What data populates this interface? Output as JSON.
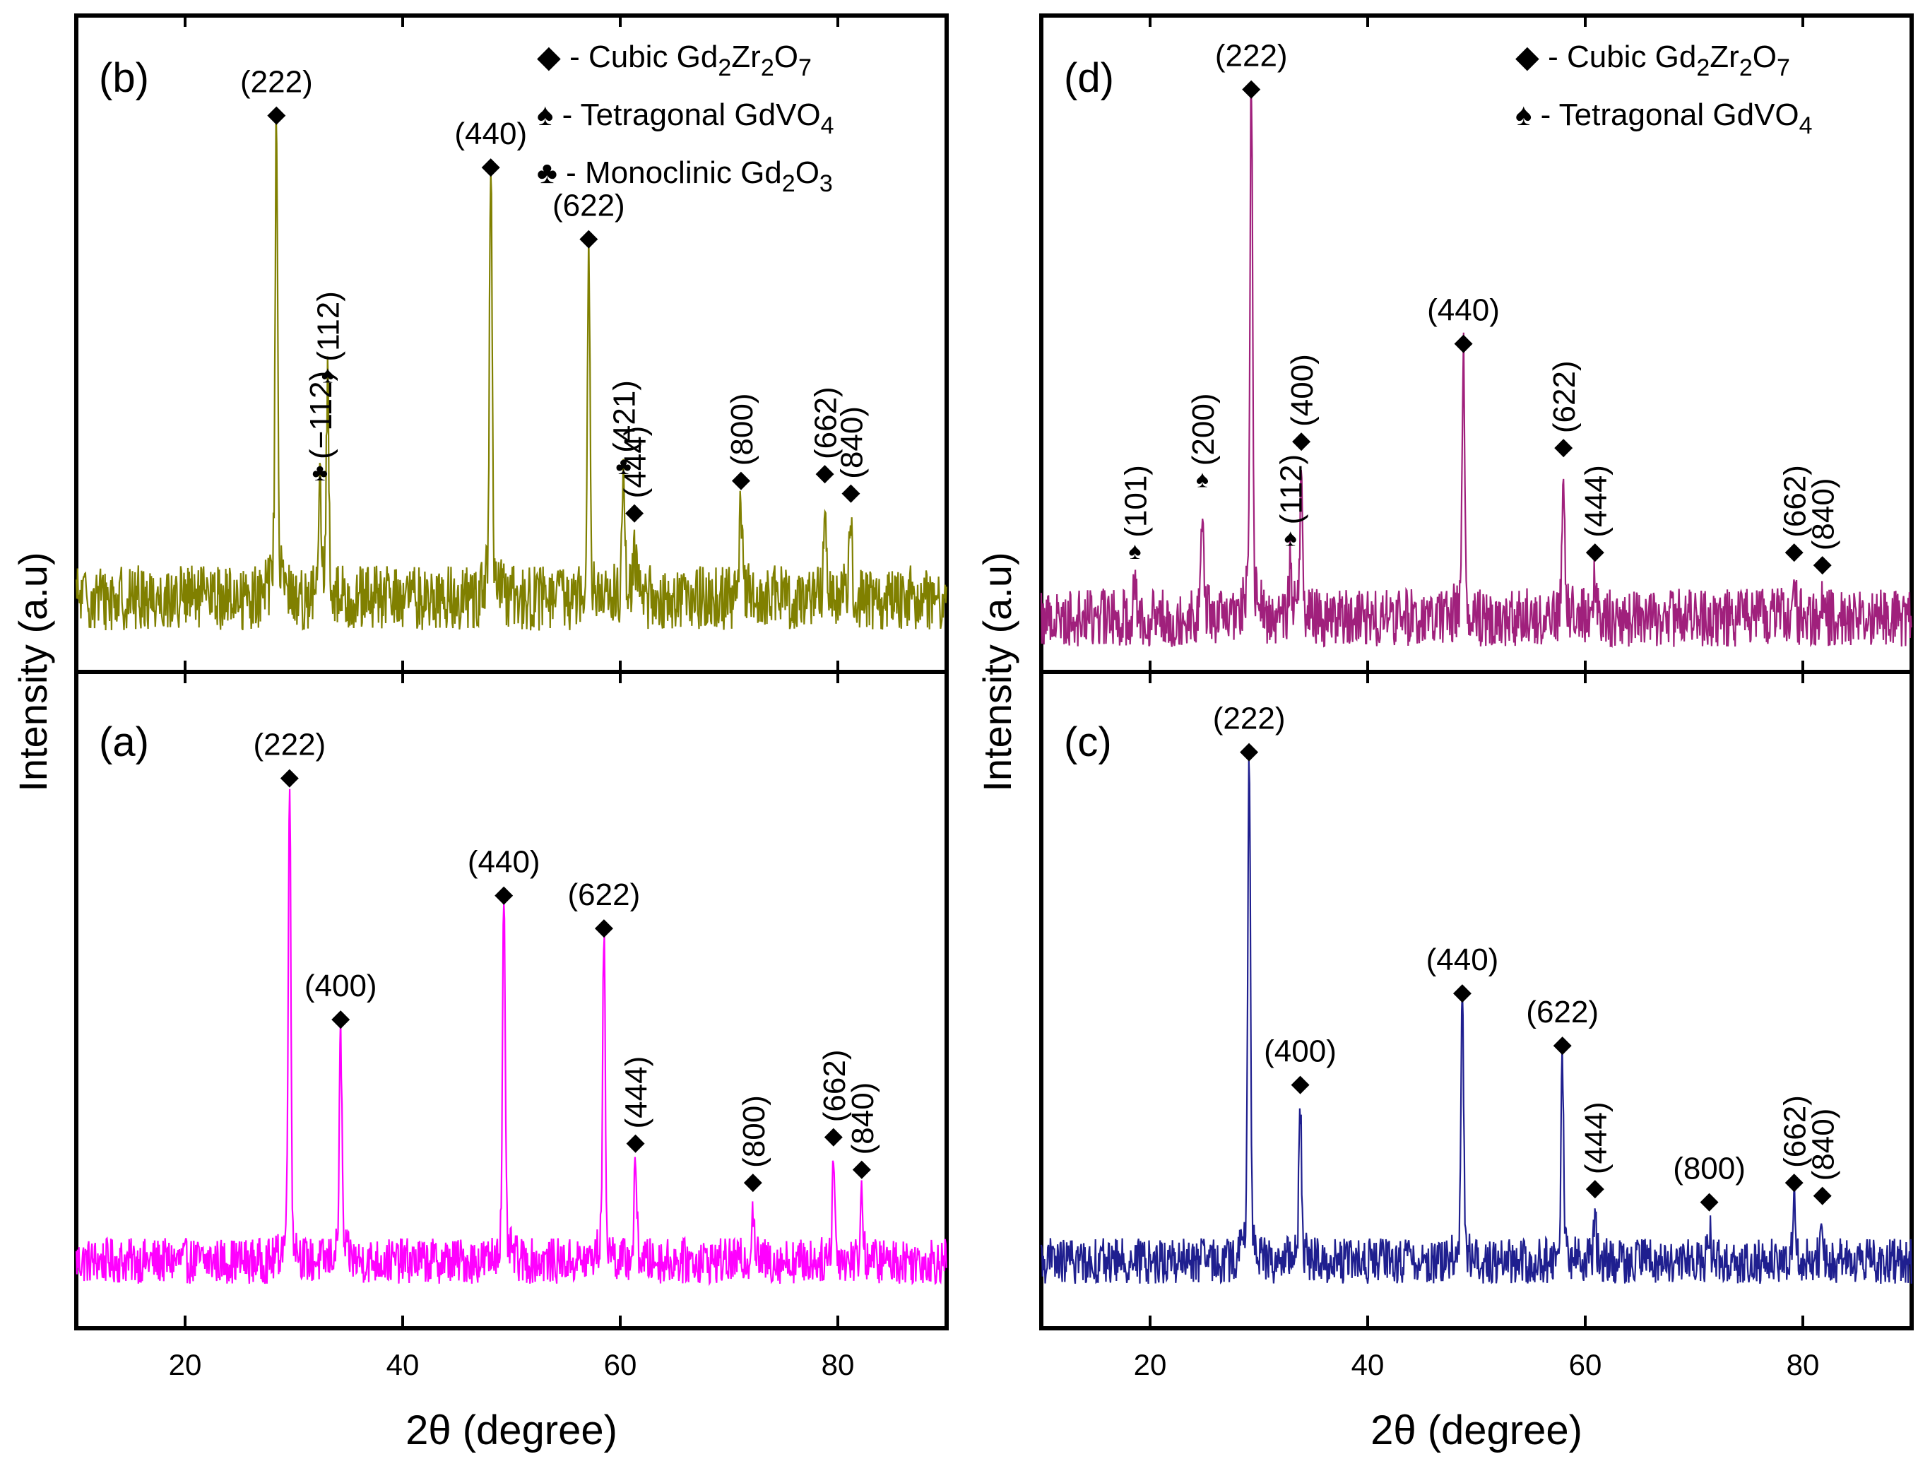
{
  "figure": {
    "y_axis_label": "Intensity (a.u)",
    "x_axis_label": "2θ (degree)",
    "x_ticks": [
      "20",
      "40",
      "60",
      "80"
    ]
  },
  "symbols": {
    "diamond": "◆",
    "spade": "♠",
    "club": "♣"
  },
  "chart_data": [
    {
      "type": "line",
      "panel": "(a)",
      "color": "#ff00ff",
      "xlabel": "2θ (degree)",
      "ylabel": "Intensity (a.u)",
      "xlim": [
        10,
        90
      ],
      "legend": [],
      "baseline": 0.1,
      "noise": 0.035,
      "peaks": [
        {
          "x": 29.6,
          "h": 0.7,
          "label": "(222)",
          "marker": "diamond",
          "rotated": false
        },
        {
          "x": 34.3,
          "h": 0.33,
          "label": "(400)",
          "marker": "diamond",
          "rotated": false
        },
        {
          "x": 49.3,
          "h": 0.52,
          "label": "(440)",
          "marker": "diamond",
          "rotated": false
        },
        {
          "x": 58.5,
          "h": 0.47,
          "label": "(622)",
          "marker": "diamond",
          "rotated": false
        },
        {
          "x": 61.4,
          "h": 0.14,
          "label": "(444)",
          "marker": "diamond",
          "rotated": true
        },
        {
          "x": 72.2,
          "h": 0.08,
          "label": "(800)",
          "marker": "diamond",
          "rotated": true
        },
        {
          "x": 79.6,
          "h": 0.15,
          "label": "(662)",
          "marker": "diamond",
          "rotated": true
        },
        {
          "x": 82.2,
          "h": 0.1,
          "label": "(840)",
          "marker": "diamond",
          "rotated": true
        }
      ]
    },
    {
      "type": "line",
      "panel": "(b)",
      "color": "#808000",
      "xlabel": "2θ (degree)",
      "ylabel": "Intensity (a.u)",
      "xlim": [
        10,
        90
      ],
      "legend": [
        {
          "symbol": "diamond",
          "text": " - Cubic Gd",
          "sub1": "2",
          "text2": "Zr",
          "sub2": "2",
          "text3": "O",
          "sub3": "7"
        },
        {
          "symbol": "spade",
          "text": " - Tetragonal GdVO",
          "sub1": "4"
        },
        {
          "symbol": "club",
          "text": " - Monoclinic Gd",
          "sub1": "2",
          "text2": "O",
          "sub2": "3"
        }
      ],
      "baseline": 0.11,
      "noise": 0.05,
      "peaks": [
        {
          "x": 28.4,
          "h": 0.7,
          "label": "(222)",
          "marker": "diamond",
          "rotated": false
        },
        {
          "x": 32.4,
          "h": 0.15,
          "label": "(−112)",
          "marker": "club",
          "rotated": true
        },
        {
          "x": 33.1,
          "h": 0.3,
          "label": "(112)",
          "marker": "spade",
          "rotated": true
        },
        {
          "x": 48.1,
          "h": 0.62,
          "label": "(440)",
          "marker": "diamond",
          "rotated": false
        },
        {
          "x": 57.1,
          "h": 0.51,
          "label": "(622)",
          "marker": "diamond",
          "rotated": false
        },
        {
          "x": 60.3,
          "h": 0.16,
          "label": "(421)",
          "marker": "club",
          "rotated": true
        },
        {
          "x": 61.3,
          "h": 0.09,
          "label": "(444)",
          "marker": "diamond",
          "rotated": true
        },
        {
          "x": 71.1,
          "h": 0.14,
          "label": "(800)",
          "marker": "diamond",
          "rotated": true
        },
        {
          "x": 78.8,
          "h": 0.15,
          "label": "(662)",
          "marker": "diamond",
          "rotated": true
        },
        {
          "x": 81.2,
          "h": 0.12,
          "label": "(840)",
          "marker": "diamond",
          "rotated": true
        }
      ]
    },
    {
      "type": "line",
      "panel": "(c)",
      "color": "#1f1f8f",
      "xlabel": "2θ (degree)",
      "ylabel": "Intensity (a.u)",
      "xlim": [
        10,
        90
      ],
      "legend": [],
      "baseline": 0.1,
      "noise": 0.035,
      "peaks": [
        {
          "x": 29.1,
          "h": 0.74,
          "label": "(222)",
          "marker": "diamond",
          "rotated": false
        },
        {
          "x": 33.8,
          "h": 0.23,
          "label": "(400)",
          "marker": "diamond",
          "rotated": false
        },
        {
          "x": 48.7,
          "h": 0.37,
          "label": "(440)",
          "marker": "diamond",
          "rotated": false
        },
        {
          "x": 57.9,
          "h": 0.29,
          "label": "(622)",
          "marker": "diamond",
          "rotated": false
        },
        {
          "x": 60.9,
          "h": 0.07,
          "label": "(444)",
          "marker": "diamond",
          "rotated": true
        },
        {
          "x": 71.4,
          "h": 0.05,
          "label": "(800)",
          "marker": "diamond",
          "rotated": false
        },
        {
          "x": 79.2,
          "h": 0.08,
          "label": "(662)",
          "marker": "diamond",
          "rotated": true
        },
        {
          "x": 81.8,
          "h": 0.06,
          "label": "(840)",
          "marker": "diamond",
          "rotated": true
        }
      ]
    },
    {
      "type": "line",
      "panel": "(d)",
      "color": "#a0207c",
      "xlabel": "2θ (degree)",
      "ylabel": "Intensity (a.u)",
      "xlim": [
        10,
        90
      ],
      "legend": [
        {
          "symbol": "diamond",
          "text": " - Cubic Gd",
          "sub1": "2",
          "text2": "Zr",
          "sub2": "2",
          "text3": "O",
          "sub3": "7"
        },
        {
          "symbol": "spade",
          "text": " - Tetragonal GdVO",
          "sub1": "4"
        }
      ],
      "baseline": 0.08,
      "noise": 0.045,
      "peaks": [
        {
          "x": 18.6,
          "h": 0.06,
          "label": "(101)",
          "marker": "spade",
          "rotated": true
        },
        {
          "x": 24.8,
          "h": 0.17,
          "label": "(200)",
          "marker": "spade",
          "rotated": true
        },
        {
          "x": 29.3,
          "h": 0.77,
          "label": "(222)",
          "marker": "diamond",
          "rotated": false
        },
        {
          "x": 32.9,
          "h": 0.08,
          "label": "(112)",
          "marker": "spade",
          "rotated": true
        },
        {
          "x": 33.9,
          "h": 0.23,
          "label": "(400)",
          "marker": "diamond",
          "rotated": true
        },
        {
          "x": 48.8,
          "h": 0.38,
          "label": "(440)",
          "marker": "diamond",
          "rotated": false
        },
        {
          "x": 58.0,
          "h": 0.22,
          "label": "(622)",
          "marker": "diamond",
          "rotated": true
        },
        {
          "x": 60.9,
          "h": 0.06,
          "label": "(444)",
          "marker": "diamond",
          "rotated": true
        },
        {
          "x": 79.2,
          "h": 0.06,
          "label": "(662)",
          "marker": "diamond",
          "rotated": true
        },
        {
          "x": 81.8,
          "h": 0.04,
          "label": "(840)",
          "marker": "diamond",
          "rotated": true
        }
      ]
    }
  ]
}
